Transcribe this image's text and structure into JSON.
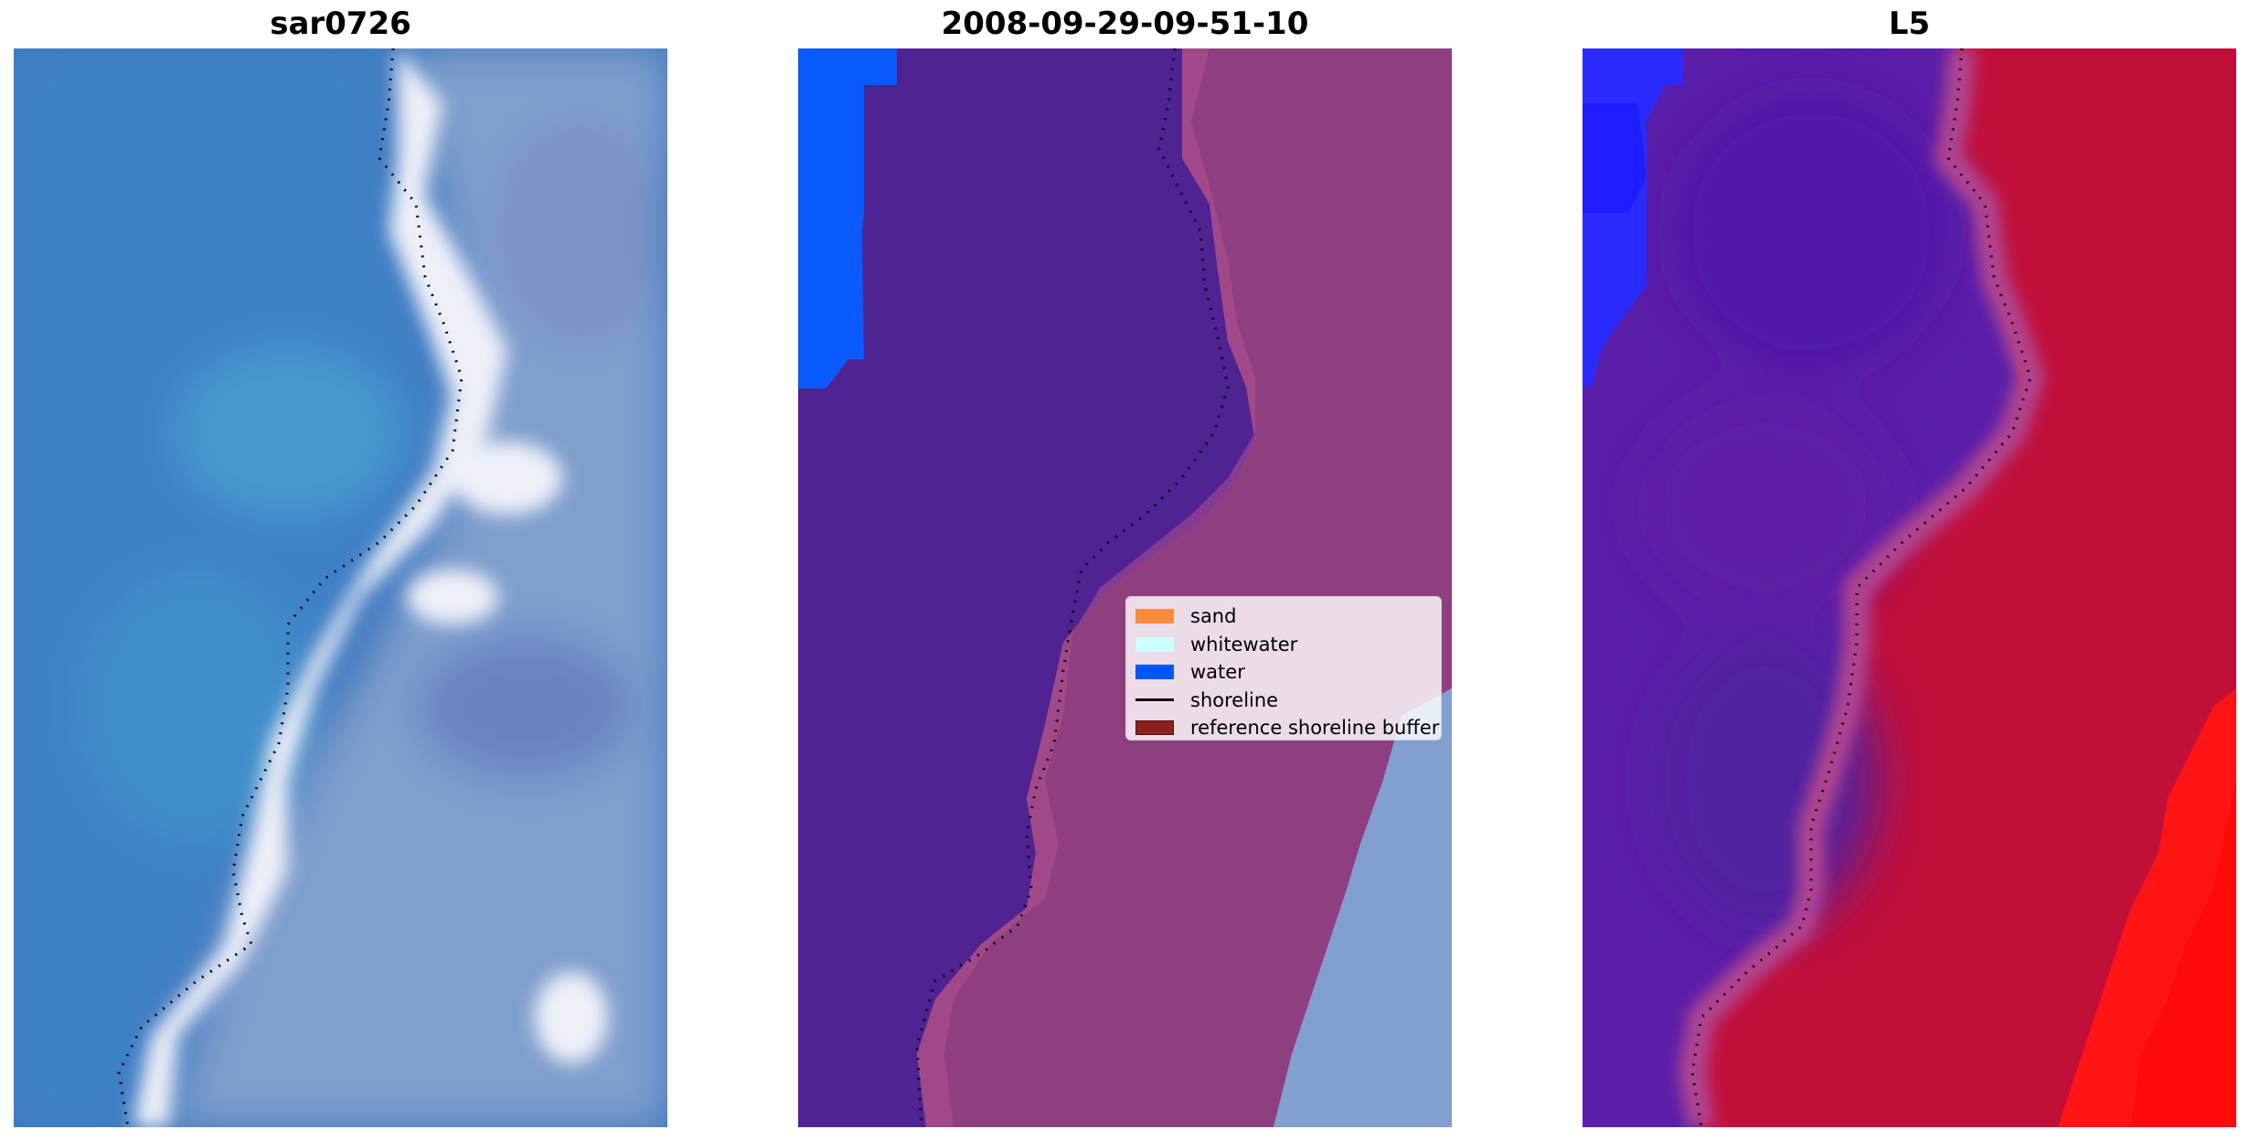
{
  "panels": [
    {
      "id": "rgb",
      "title": "sar0726"
    },
    {
      "id": "classification",
      "title": "2008-09-29-09-51-10"
    },
    {
      "id": "index",
      "title": "L5"
    }
  ],
  "legend": {
    "items": [
      {
        "label": "sand",
        "color": "#ff8c3c",
        "kind": "patch"
      },
      {
        "label": "whitewater",
        "color": "#ccffff",
        "kind": "patch"
      },
      {
        "label": "water",
        "color": "#0055ff",
        "kind": "patch"
      },
      {
        "label": "shoreline",
        "color": "#000000",
        "kind": "line"
      },
      {
        "label": "reference shoreline buffer",
        "color": "#8b2020",
        "kind": "patch"
      }
    ]
  },
  "colors": {
    "rgb_water": "#3f79c0",
    "rgb_foam": "#e4e4f2",
    "rgb_land": "#7f9fcc",
    "class_water_fill": "#4f2391",
    "class_buffer": "#8f3f7f",
    "class_water_label": "#0055ff",
    "index_low": "#5a1ea8",
    "index_high": "#c0103a",
    "index_blue": "#2233ff",
    "index_red": "#ff1010"
  }
}
